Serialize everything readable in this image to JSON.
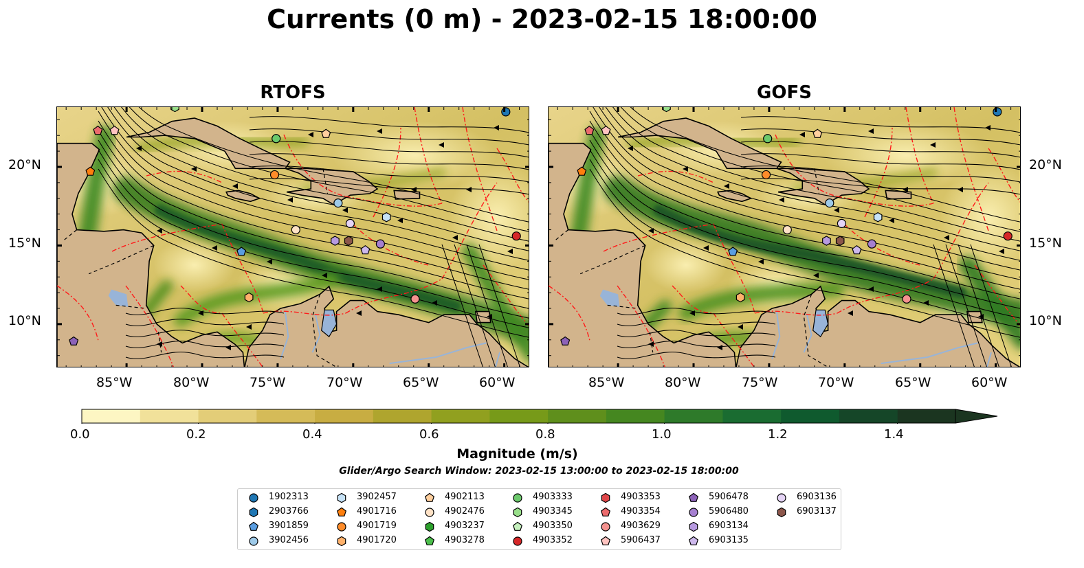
{
  "title": "Currents (0 m) - 2023-02-15 18:00:00",
  "panels": [
    {
      "title": "RTOFS"
    },
    {
      "title": "GOFS"
    }
  ],
  "axes": {
    "x_ticks": [
      "85°W",
      "80°W",
      "75°W",
      "70°W",
      "65°W",
      "60°W"
    ],
    "y_ticks": [
      "20°N",
      "15°N",
      "10°N"
    ]
  },
  "colorbar": {
    "label": "Magnitude (m/s)",
    "ticks": [
      "0.0",
      "0.2",
      "0.4",
      "0.6",
      "0.8",
      "1.0",
      "1.2",
      "1.4"
    ],
    "range": [
      0.0,
      1.5
    ],
    "extend": "max",
    "colors": [
      "#fdf6c3",
      "#f1e19a",
      "#e3cd78",
      "#d5bb58",
      "#c8ad42",
      "#afa52e",
      "#91a01f",
      "#779a19",
      "#5f8f1c",
      "#458720",
      "#2e7a2a",
      "#1a6c31",
      "#0f5a2e",
      "#154628",
      "#1b3520"
    ]
  },
  "search_window": "Glider/Argo Search Window: 2023-02-15 13:00:00 to 2023-02-15 18:00:00",
  "legend": [
    {
      "id": "1902313",
      "marker": "circle",
      "color": "#1f77b4"
    },
    {
      "id": "2903766",
      "marker": "hexagon",
      "color": "#1f77b4"
    },
    {
      "id": "3901859",
      "marker": "pentagon",
      "color": "#5a9de0"
    },
    {
      "id": "3902456",
      "marker": "circle",
      "color": "#9ecae9"
    },
    {
      "id": "3902457",
      "marker": "hexagon",
      "color": "#c6e2f7"
    },
    {
      "id": "4901716",
      "marker": "pentagon",
      "color": "#ff7f0e"
    },
    {
      "id": "4901719",
      "marker": "circle",
      "color": "#ff8c2a"
    },
    {
      "id": "4901720",
      "marker": "hexagon",
      "color": "#ffb16b"
    },
    {
      "id": "4902113",
      "marker": "pentagon",
      "color": "#ffcf9e"
    },
    {
      "id": "4902476",
      "marker": "circle",
      "color": "#ffe2c6"
    },
    {
      "id": "4903237",
      "marker": "hexagon",
      "color": "#2ca02c"
    },
    {
      "id": "4903278",
      "marker": "pentagon",
      "color": "#4cbf4c"
    },
    {
      "id": "4903333",
      "marker": "circle",
      "color": "#6cc96c"
    },
    {
      "id": "4903345",
      "marker": "hexagon",
      "color": "#98df8a"
    },
    {
      "id": "4903350",
      "marker": "pentagon",
      "color": "#c5f0bd"
    },
    {
      "id": "4903352",
      "marker": "circle",
      "color": "#d62728"
    },
    {
      "id": "4903353",
      "marker": "hexagon",
      "color": "#e0474a"
    },
    {
      "id": "4903354",
      "marker": "pentagon",
      "color": "#ec6b6d"
    },
    {
      "id": "4903629",
      "marker": "circle",
      "color": "#f4928f"
    },
    {
      "id": "5906437",
      "marker": "pentagon",
      "color": "#ffc3c0"
    },
    {
      "id": "5906478",
      "marker": "pentagon",
      "color": "#8c62b8"
    },
    {
      "id": "5906480",
      "marker": "circle",
      "color": "#a57fd0"
    },
    {
      "id": "6903134",
      "marker": "hexagon",
      "color": "#b79ae0"
    },
    {
      "id": "6903135",
      "marker": "pentagon",
      "color": "#cdb8ec"
    },
    {
      "id": "6903136",
      "marker": "circle",
      "color": "#e5d4f6"
    },
    {
      "id": "6903137",
      "marker": "hexagon",
      "color": "#8c564b"
    }
  ]
}
